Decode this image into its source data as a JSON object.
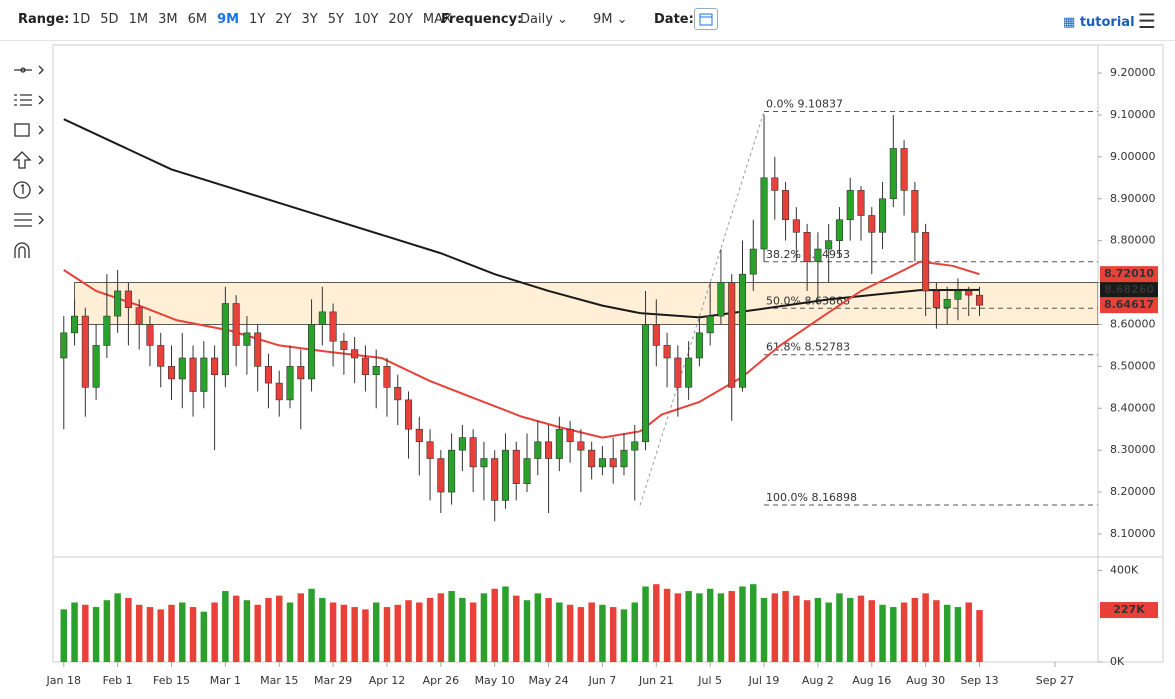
{
  "toolbar": {
    "range_label": "Range:",
    "ranges": [
      "1D",
      "5D",
      "1M",
      "3M",
      "6M",
      "9M",
      "1Y",
      "2Y",
      "3Y",
      "5Y",
      "10Y",
      "20Y",
      "MAX"
    ],
    "selected_range": 5,
    "frequency_label": "Frequency:",
    "frequency": "Daily",
    "period": "9M",
    "date_label": "Date:",
    "tutorial": "tutorial"
  },
  "chart_data": {
    "type": "candlestick",
    "up_color": "#2ca02c",
    "down_color": "#e8413a",
    "x": [
      0,
      2,
      4,
      6,
      8,
      10,
      12,
      14,
      16,
      18,
      20,
      22,
      24,
      26,
      28,
      30,
      32,
      34,
      36,
      38,
      40,
      42,
      44,
      46,
      48,
      50,
      52,
      54,
      56,
      58,
      60,
      62,
      64,
      66,
      68,
      70,
      72,
      74,
      76,
      78,
      80,
      82,
      84,
      86,
      88,
      90,
      92,
      94,
      96,
      98,
      100,
      102,
      104,
      106,
      108,
      110,
      112,
      114,
      116,
      118,
      120,
      122,
      124,
      126,
      128,
      130,
      132,
      134,
      136,
      138,
      140,
      142,
      144,
      146,
      148,
      150,
      152,
      154,
      156,
      158,
      160,
      162,
      164,
      166,
      168,
      170
    ],
    "open": [
      8.52,
      8.58,
      8.62,
      8.45,
      8.55,
      8.62,
      8.68,
      8.64,
      8.6,
      8.55,
      8.5,
      8.47,
      8.52,
      8.44,
      8.52,
      8.48,
      8.65,
      8.55,
      8.58,
      8.5,
      8.46,
      8.42,
      8.5,
      8.47,
      8.6,
      8.63,
      8.56,
      8.54,
      8.52,
      8.48,
      8.5,
      8.45,
      8.42,
      8.35,
      8.32,
      8.28,
      8.2,
      8.3,
      8.33,
      8.26,
      8.28,
      8.18,
      8.3,
      8.22,
      8.28,
      8.32,
      8.28,
      8.35,
      8.32,
      8.3,
      8.26,
      8.28,
      8.26,
      8.3,
      8.32,
      8.6,
      8.55,
      8.52,
      8.45,
      8.52,
      8.58,
      8.62,
      8.7,
      8.45,
      8.72,
      8.78,
      8.95,
      8.92,
      8.85,
      8.82,
      8.75,
      8.78,
      8.8,
      8.85,
      8.92,
      8.86,
      8.82,
      8.9,
      9.02,
      8.92,
      8.82,
      8.68,
      8.64,
      8.66,
      8.68,
      8.67
    ],
    "high": [
      8.62,
      8.66,
      8.64,
      8.6,
      8.72,
      8.73,
      8.7,
      8.66,
      8.62,
      8.58,
      8.55,
      8.58,
      8.55,
      8.56,
      8.55,
      8.69,
      8.67,
      8.62,
      8.6,
      8.53,
      8.49,
      8.55,
      8.54,
      8.66,
      8.69,
      8.65,
      8.58,
      8.57,
      8.55,
      8.54,
      8.52,
      8.48,
      8.44,
      8.38,
      8.35,
      8.3,
      8.34,
      8.36,
      8.35,
      8.32,
      8.3,
      8.34,
      8.32,
      8.34,
      8.37,
      8.36,
      8.38,
      8.37,
      8.35,
      8.32,
      8.31,
      8.33,
      8.34,
      8.36,
      8.68,
      8.66,
      8.58,
      8.55,
      8.56,
      8.62,
      8.7,
      8.78,
      8.72,
      8.8,
      8.85,
      9.1,
      9.0,
      8.94,
      8.88,
      8.84,
      8.82,
      8.84,
      8.88,
      8.95,
      8.93,
      8.88,
      8.94,
      9.1,
      9.04,
      8.94,
      8.84,
      8.7,
      8.69,
      8.71,
      8.69,
      8.69
    ],
    "low": [
      8.35,
      8.55,
      8.38,
      8.42,
      8.52,
      8.58,
      8.55,
      8.54,
      8.5,
      8.45,
      8.42,
      8.4,
      8.38,
      8.4,
      8.3,
      8.45,
      8.5,
      8.48,
      8.44,
      8.4,
      8.38,
      8.4,
      8.35,
      8.44,
      8.55,
      8.5,
      8.48,
      8.46,
      8.44,
      8.4,
      8.38,
      8.36,
      8.28,
      8.24,
      8.18,
      8.15,
      8.17,
      8.25,
      8.2,
      8.18,
      8.13,
      8.16,
      8.18,
      8.2,
      8.24,
      8.15,
      8.25,
      8.27,
      8.2,
      8.23,
      8.24,
      8.22,
      8.24,
      8.18,
      8.3,
      8.5,
      8.45,
      8.38,
      8.42,
      8.5,
      8.55,
      8.6,
      8.37,
      8.44,
      8.68,
      8.75,
      8.85,
      8.8,
      8.75,
      8.68,
      8.65,
      8.7,
      8.76,
      8.8,
      8.8,
      8.72,
      8.78,
      8.88,
      8.86,
      8.75,
      8.62,
      8.59,
      8.6,
      8.61,
      8.62,
      8.62
    ],
    "close": [
      8.58,
      8.62,
      8.45,
      8.55,
      8.62,
      8.68,
      8.64,
      8.6,
      8.55,
      8.5,
      8.47,
      8.52,
      8.44,
      8.52,
      8.48,
      8.65,
      8.55,
      8.58,
      8.5,
      8.46,
      8.42,
      8.5,
      8.47,
      8.6,
      8.63,
      8.56,
      8.54,
      8.52,
      8.48,
      8.5,
      8.45,
      8.42,
      8.35,
      8.32,
      8.28,
      8.2,
      8.3,
      8.33,
      8.26,
      8.28,
      8.18,
      8.3,
      8.22,
      8.28,
      8.32,
      8.28,
      8.35,
      8.32,
      8.3,
      8.26,
      8.28,
      8.26,
      8.3,
      8.32,
      8.6,
      8.55,
      8.52,
      8.45,
      8.52,
      8.58,
      8.62,
      8.7,
      8.45,
      8.72,
      8.78,
      8.95,
      8.92,
      8.85,
      8.82,
      8.75,
      8.78,
      8.8,
      8.85,
      8.92,
      8.86,
      8.82,
      8.9,
      9.02,
      8.92,
      8.82,
      8.68,
      8.64,
      8.66,
      8.68,
      8.67,
      8.646
    ],
    "xlim": [
      -2,
      192
    ],
    "xticks": [
      {
        "value": 0,
        "label": "Jan 18"
      },
      {
        "value": 10,
        "label": "Feb 1"
      },
      {
        "value": 20,
        "label": "Feb 15"
      },
      {
        "value": 30,
        "label": "Mar 1"
      },
      {
        "value": 40,
        "label": "Mar 15"
      },
      {
        "value": 50,
        "label": "Mar 29"
      },
      {
        "value": 60,
        "label": "Apr 12"
      },
      {
        "value": 70,
        "label": "Apr 26"
      },
      {
        "value": 80,
        "label": "May 10"
      },
      {
        "value": 90,
        "label": "May 24"
      },
      {
        "value": 100,
        "label": "Jun 7"
      },
      {
        "value": 110,
        "label": "Jun 21"
      },
      {
        "value": 120,
        "label": "Jul 5"
      },
      {
        "value": 130,
        "label": "Jul 19"
      },
      {
        "value": 140,
        "label": "Aug 2"
      },
      {
        "value": 150,
        "label": "Aug 16"
      },
      {
        "value": 160,
        "label": "Aug 30"
      },
      {
        "value": 170,
        "label": "Sep 13"
      },
      {
        "value": 184,
        "label": "Sep 27"
      }
    ],
    "ylim": [
      8.045,
      9.267
    ],
    "yticks": [
      {
        "value": 8.1,
        "label": "8.10000"
      },
      {
        "value": 8.2,
        "label": "8.20000"
      },
      {
        "value": 8.3,
        "label": "8.30000"
      },
      {
        "value": 8.4,
        "label": "8.40000"
      },
      {
        "value": 8.5,
        "label": "8.50000"
      },
      {
        "value": 8.6,
        "label": "8.60000"
      },
      {
        "value": 8.7,
        "label": "8.70000"
      },
      {
        "value": 8.8,
        "label": "8.80000"
      },
      {
        "value": 8.9,
        "label": "8.90000"
      },
      {
        "value": 9.0,
        "label": "9.00000"
      },
      {
        "value": 9.1,
        "label": "9.10000"
      },
      {
        "value": 9.2,
        "label": "9.20000"
      }
    ],
    "last_close": {
      "value": 8.64617,
      "label": "8.64617"
    },
    "moving_averages": [
      {
        "color": "#1a1a1a",
        "x": [
          0,
          10,
          20,
          30,
          40,
          50,
          60,
          70,
          80,
          90,
          100,
          107,
          118,
          129,
          142,
          159,
          170
        ],
        "values": [
          9.09,
          9.03,
          8.97,
          8.93,
          8.89,
          8.85,
          8.81,
          8.77,
          8.72,
          8.68,
          8.645,
          8.627,
          8.617,
          8.636,
          8.66,
          8.682,
          8.6826
        ],
        "last": {
          "value": 8.6826,
          "label": "8.68260"
        }
      },
      {
        "color": "#e8413a",
        "x": [
          0,
          6,
          14,
          21,
          31,
          40,
          49,
          59,
          68,
          77,
          85,
          92,
          100,
          107,
          111,
          118,
          126,
          133,
          141,
          148,
          156,
          159,
          165,
          170
        ],
        "values": [
          8.73,
          8.68,
          8.645,
          8.61,
          8.585,
          8.55,
          8.535,
          8.52,
          8.465,
          8.42,
          8.38,
          8.355,
          8.33,
          8.345,
          8.385,
          8.415,
          8.475,
          8.55,
          8.62,
          8.68,
          8.73,
          8.75,
          8.74,
          8.7201
        ],
        "last": {
          "value": 8.7201,
          "label": "8.72010"
        }
      }
    ],
    "fibonacci": {
      "anchor_x": [
        107,
        130
      ],
      "levels": [
        {
          "value": 9.10837,
          "label": "0.0% 9.10837"
        },
        {
          "value": 8.74953,
          "label": "38.2% 8.74953"
        },
        {
          "value": 8.63868,
          "label": "50.0% 8.63868"
        },
        {
          "value": 8.52783,
          "label": "61.8% 8.52783"
        },
        {
          "value": 8.16898,
          "label": "100.0% 8.16898"
        }
      ]
    },
    "zone": {
      "x_start": 2,
      "range": [
        8.6,
        8.7
      ]
    },
    "volume": {
      "ylim": [
        0,
        450000
      ],
      "yticks": [
        {
          "value": 0,
          "label": "0K"
        },
        {
          "value": 400000,
          "label": "400K"
        }
      ],
      "last": {
        "value": 227000,
        "label": "227K"
      },
      "values": [
        230000,
        260000,
        250000,
        240000,
        270000,
        300000,
        280000,
        250000,
        240000,
        230000,
        250000,
        260000,
        240000,
        220000,
        260000,
        310000,
        290000,
        270000,
        250000,
        280000,
        290000,
        260000,
        300000,
        320000,
        280000,
        260000,
        250000,
        240000,
        230000,
        260000,
        240000,
        250000,
        270000,
        260000,
        280000,
        300000,
        310000,
        280000,
        260000,
        300000,
        320000,
        330000,
        290000,
        270000,
        300000,
        280000,
        260000,
        250000,
        240000,
        260000,
        250000,
        240000,
        230000,
        260000,
        330000,
        340000,
        320000,
        300000,
        310000,
        300000,
        320000,
        300000,
        310000,
        330000,
        340000,
        280000,
        300000,
        310000,
        290000,
        270000,
        280000,
        260000,
        300000,
        280000,
        290000,
        270000,
        250000,
        240000,
        260000,
        280000,
        300000,
        270000,
        250000,
        240000,
        260000,
        227000
      ]
    }
  }
}
